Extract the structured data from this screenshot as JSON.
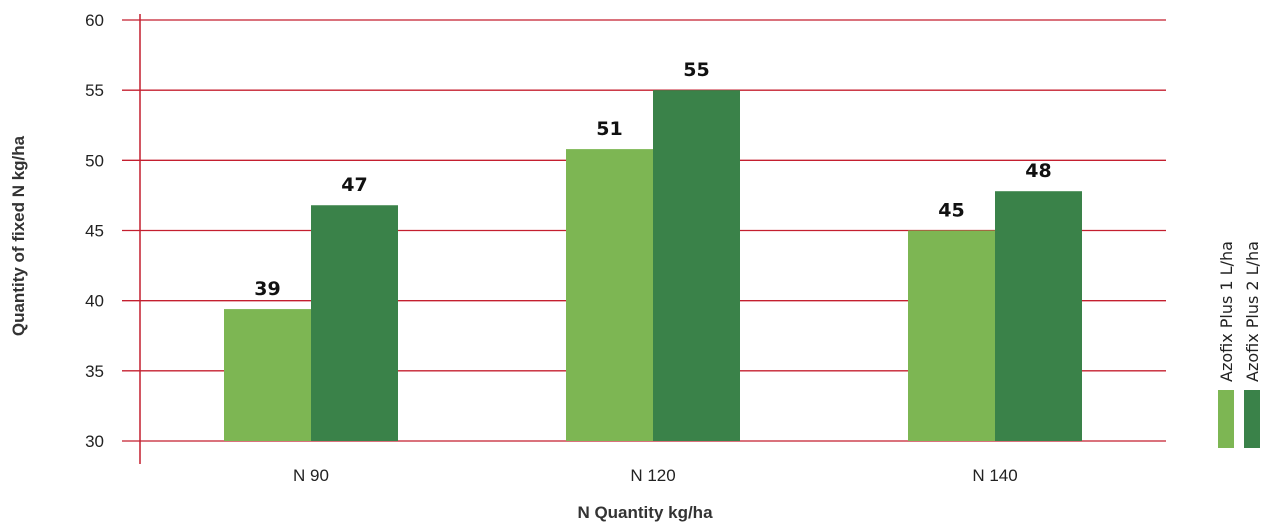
{
  "chart_data": {
    "type": "bar",
    "title": "",
    "xlabel": "N Quantity kg/ha",
    "ylabel": "Quantity of fixed N kg/ha",
    "categories": [
      "N 90",
      "N 120",
      "N 140"
    ],
    "series": [
      {
        "name": "Azofix Plus 1 L/ha",
        "values": [
          39.4,
          50.8,
          45.0
        ],
        "labels": [
          "39",
          "51",
          "45"
        ],
        "color": "#7db653"
      },
      {
        "name": "Azofix Plus 2 L/ha",
        "values": [
          46.8,
          55.0,
          47.8
        ],
        "labels": [
          "47",
          "55",
          "48"
        ],
        "color": "#3a8249"
      }
    ],
    "ylim": [
      30,
      60
    ],
    "yticks": [
      "30",
      "35",
      "40",
      "45",
      "50",
      "55",
      "60"
    ],
    "grid": true,
    "grid_color": "#c41f2f",
    "legend_position": "right"
  }
}
